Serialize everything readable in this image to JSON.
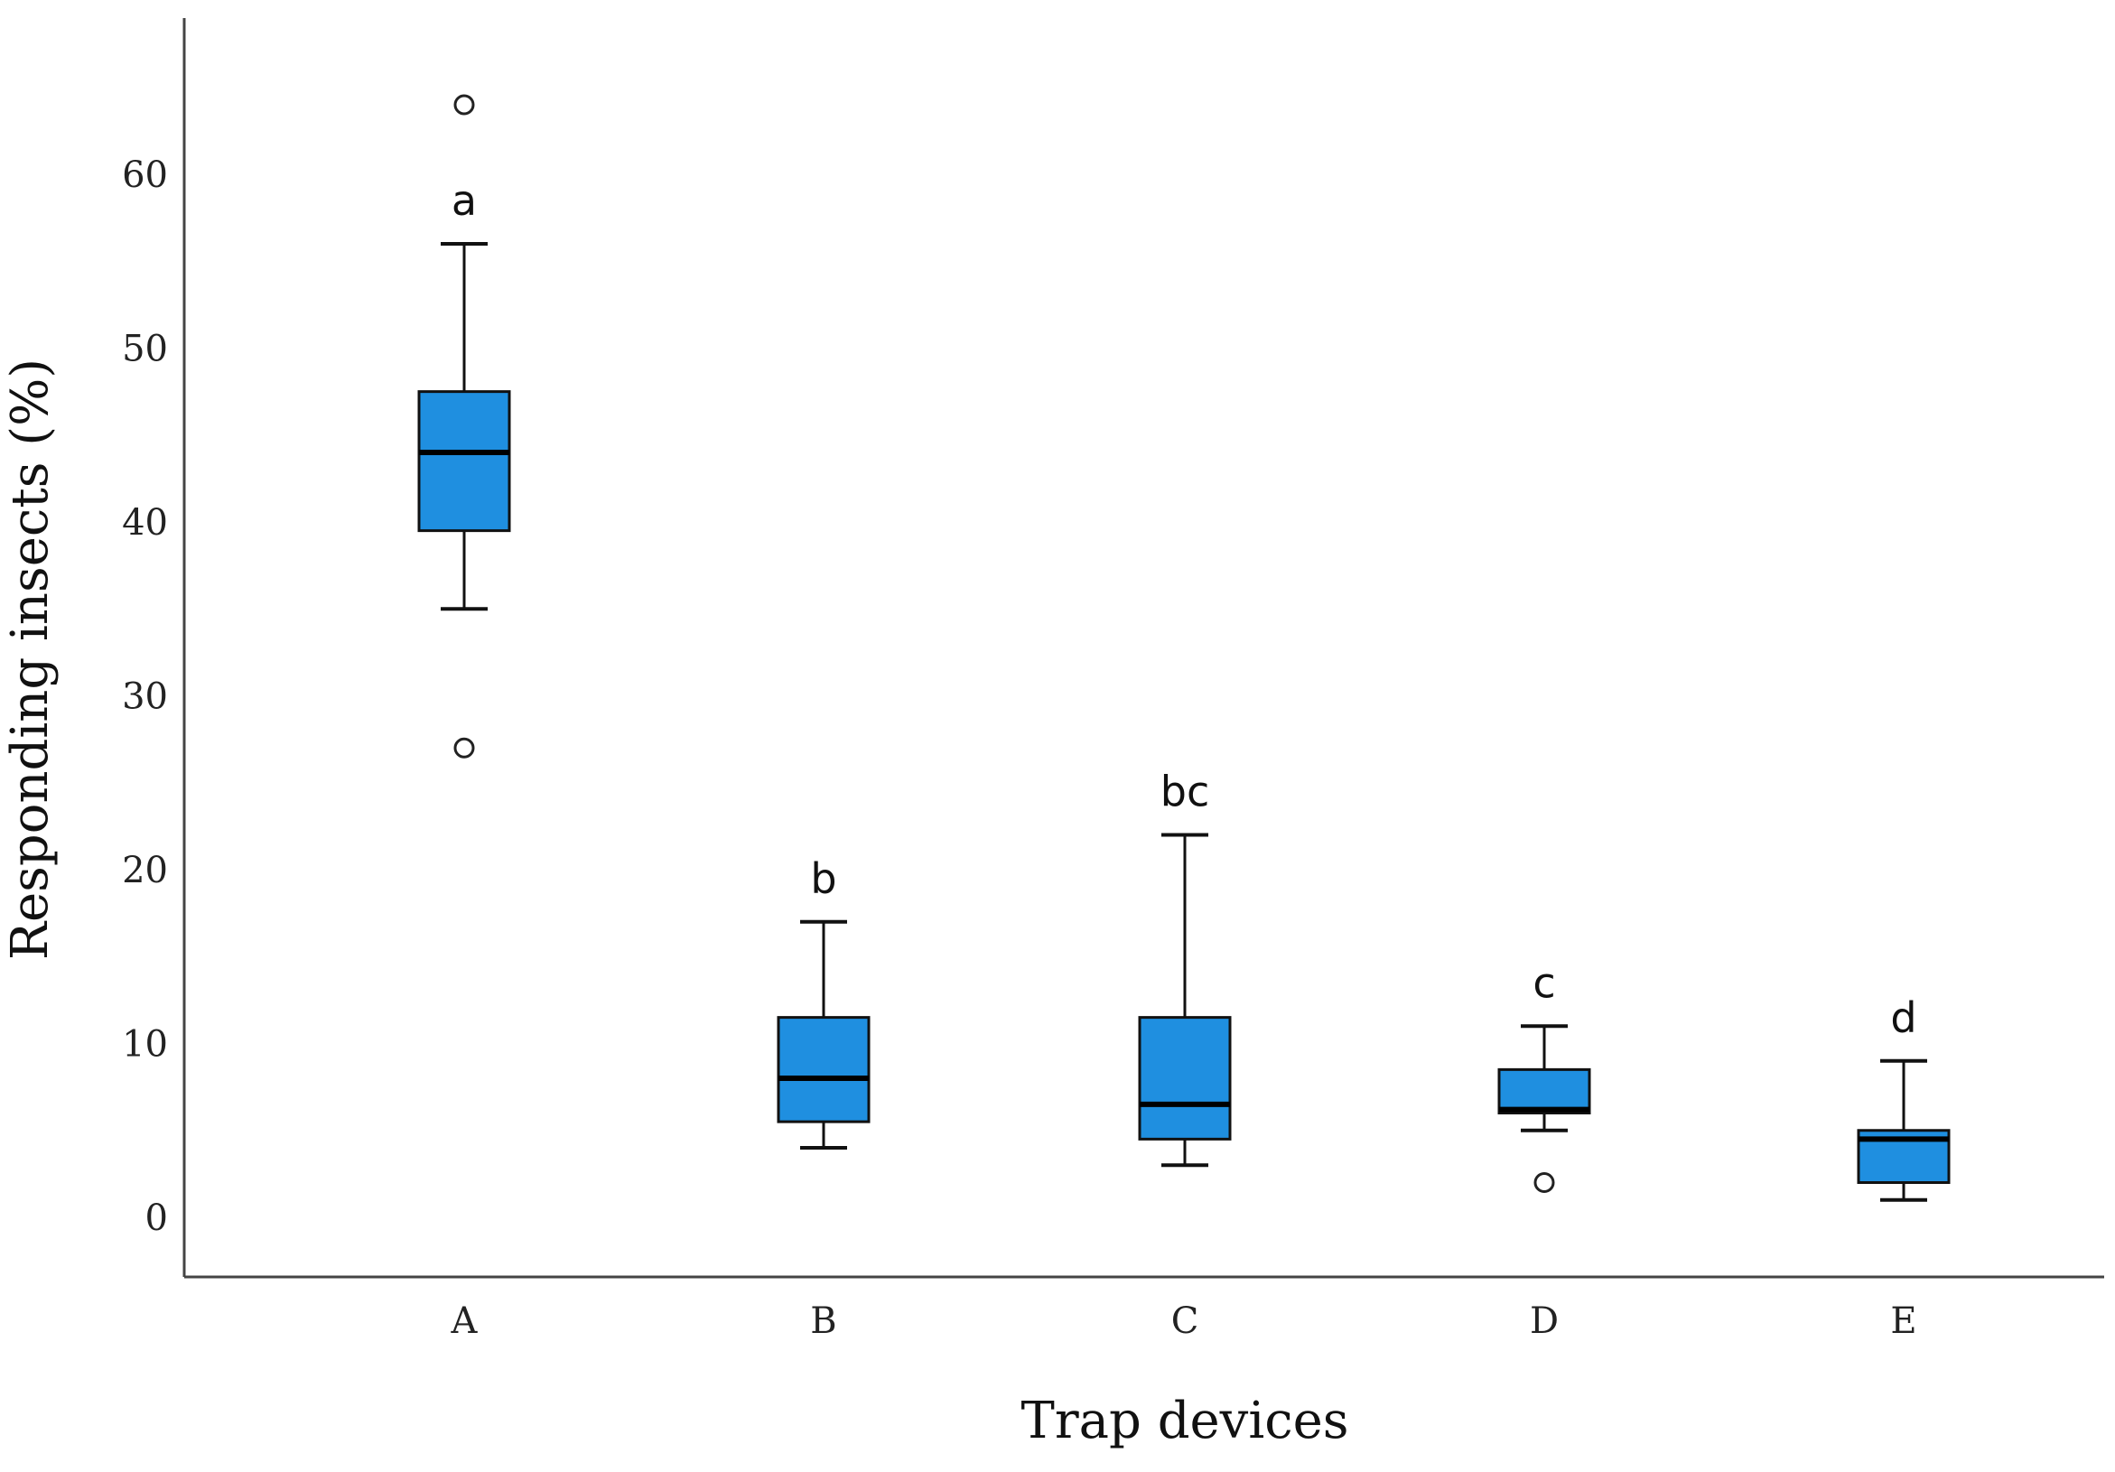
{
  "chart_data": {
    "type": "box",
    "xlabel": "Trap devices",
    "ylabel": "Responding insects (%)",
    "ylim": [
      -3,
      68
    ],
    "yticks": [
      0,
      10,
      20,
      30,
      40,
      50,
      60
    ],
    "categories": [
      "A",
      "B",
      "C",
      "D",
      "E"
    ],
    "boxes": [
      {
        "category": "A",
        "whisker_low": 35,
        "q1": 39.5,
        "median": 44,
        "q3": 47.5,
        "whisker_high": 56,
        "outliers": [
          27,
          64
        ],
        "group_label": "a"
      },
      {
        "category": "B",
        "whisker_low": 4,
        "q1": 5.5,
        "median": 8,
        "q3": 11.5,
        "whisker_high": 17,
        "outliers": [],
        "group_label": "b"
      },
      {
        "category": "C",
        "whisker_low": 3,
        "q1": 4.5,
        "median": 6.5,
        "q3": 11.5,
        "whisker_high": 22,
        "outliers": [],
        "group_label": "bc"
      },
      {
        "category": "D",
        "whisker_low": 5,
        "q1": 6,
        "median": 6.2,
        "q3": 8.5,
        "whisker_high": 11,
        "outliers": [
          2
        ],
        "group_label": "c"
      },
      {
        "category": "E",
        "whisker_low": 1,
        "q1": 2,
        "median": 4.5,
        "q3": 5,
        "whisker_high": 9,
        "outliers": [],
        "group_label": "d"
      }
    ],
    "colors": {
      "box_fill": "#1f8fe0",
      "stroke": "#111111",
      "median": "#000000",
      "axis": "#444444"
    },
    "grid": false,
    "legend": "none"
  }
}
